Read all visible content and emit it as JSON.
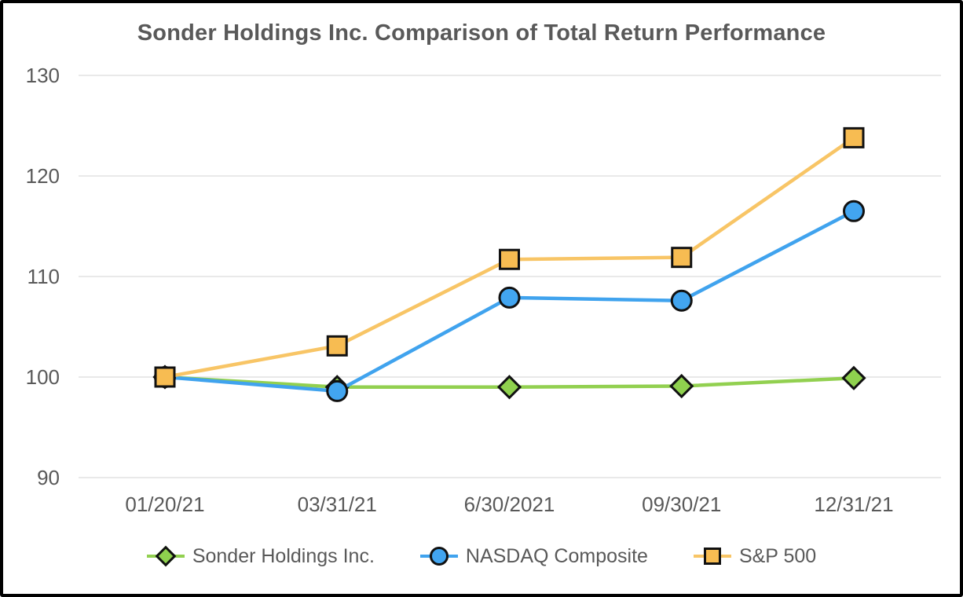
{
  "chart_data": {
    "type": "line",
    "title": "Sonder Holdings Inc. Comparison of Total Return Performance",
    "categories": [
      "01/20/21",
      "03/31/21",
      "6/30/2021",
      "09/30/21",
      "12/31/21"
    ],
    "series": [
      {
        "name": "Sonder Holdings Inc.",
        "marker": "diamond",
        "line_color": "#92D050",
        "marker_fill": "#8FD14E",
        "values": [
          100,
          99.0,
          99.0,
          99.1,
          99.9
        ]
      },
      {
        "name": "NASDAQ Composite",
        "marker": "circle",
        "line_color": "#40A3EE",
        "marker_fill": "#42A5F0",
        "values": [
          100,
          98.6,
          107.9,
          107.6,
          116.5
        ]
      },
      {
        "name": "S&P 500",
        "marker": "square",
        "line_color": "#F8C566",
        "marker_fill": "#F7BC52",
        "values": [
          100,
          103.1,
          111.7,
          111.9,
          123.8
        ]
      }
    ],
    "yticks": [
      90,
      100,
      110,
      120,
      130
    ],
    "ylim": [
      90,
      130
    ],
    "grid": "horizontal",
    "legend_position": "bottom"
  },
  "colors": {
    "title_text": "#595959",
    "axis_text": "#595959",
    "grid_line": "#E9E9E9",
    "marker_outline": "#111111",
    "background": "#FFFFFF",
    "frame_border": "#000000"
  }
}
